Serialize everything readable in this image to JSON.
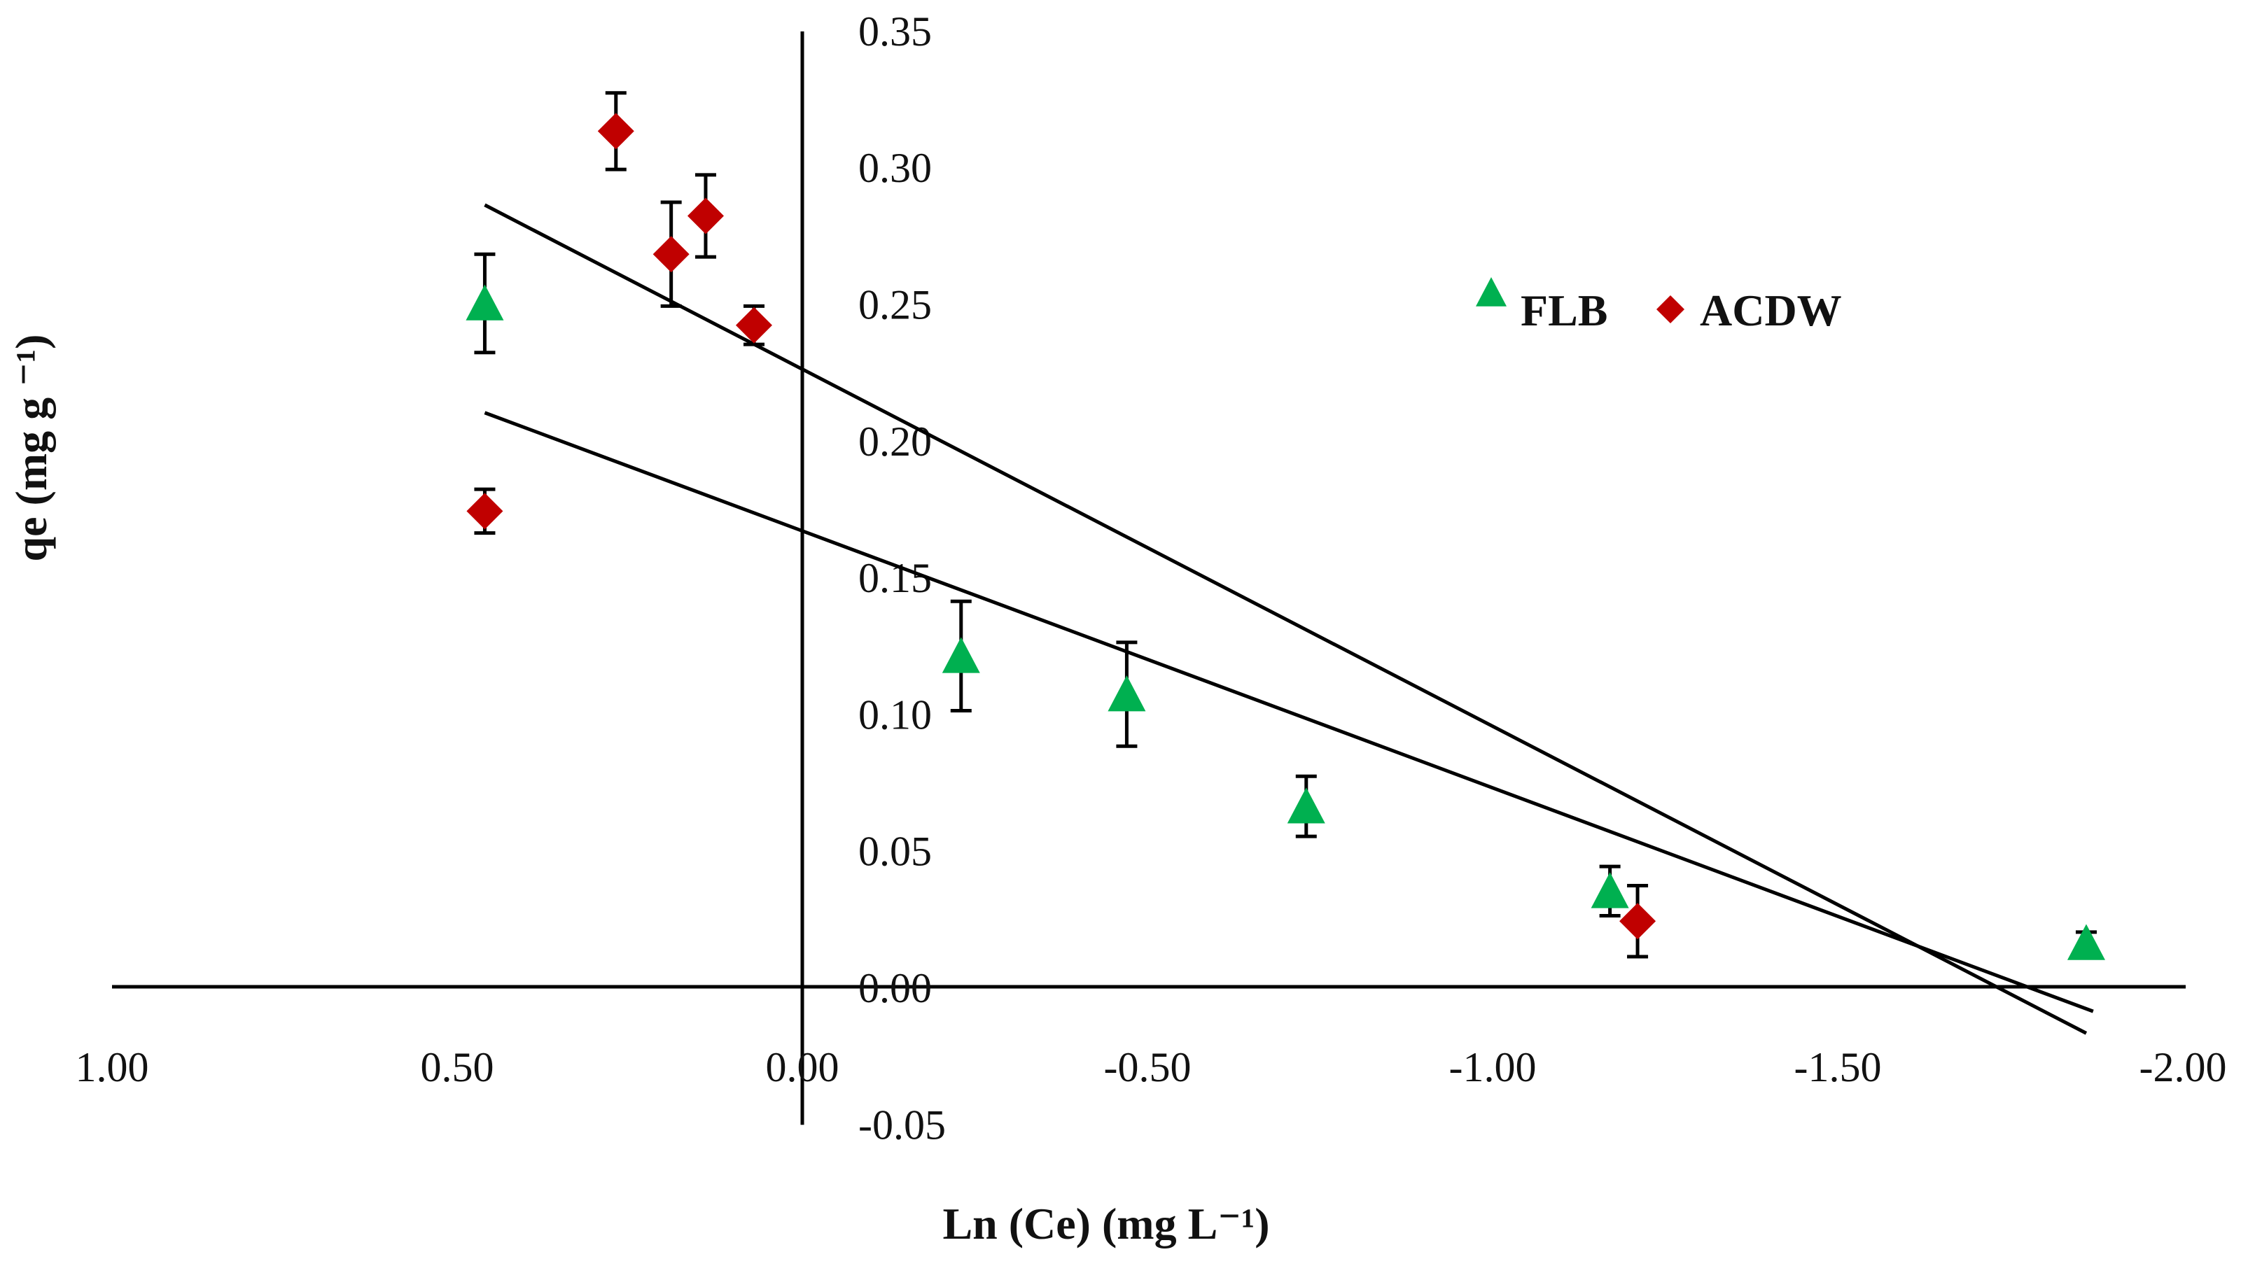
{
  "chart_data": {
    "type": "scatter",
    "title": "",
    "xlabel": "Ln (Ce) (mg L⁻¹)",
    "ylabel": "qe (mg g ⁻¹)",
    "x_reversed": true,
    "xlim": [
      -2.0,
      1.0
    ],
    "ylim": [
      -0.05,
      0.35
    ],
    "x_ticks": [
      1.0,
      0.5,
      0.0,
      -0.5,
      -1.0,
      -1.5,
      -2.0
    ],
    "x_tick_labels": [
      "1.00",
      "0.50",
      "0.00",
      "-0.50",
      "-1.00",
      "-1.50",
      "-2.00"
    ],
    "y_ticks": [
      -0.05,
      0.0,
      0.05,
      0.1,
      0.15,
      0.2,
      0.25,
      0.3,
      0.35
    ],
    "y_tick_labels": [
      "-0.05",
      "0.00",
      "0.05",
      "0.10",
      "0.15",
      "0.20",
      "0.25",
      "0.30",
      "0.35"
    ],
    "grid": false,
    "legend_position": "top-right",
    "series": [
      {
        "name": "FLB",
        "marker": "triangle",
        "color": "#00b050",
        "x": [
          0.46,
          -0.23,
          -0.47,
          -0.73,
          -1.17,
          -1.86
        ],
        "y": [
          0.25,
          0.121,
          0.107,
          0.066,
          0.035,
          0.016
        ],
        "err": [
          0.018,
          0.02,
          0.019,
          0.011,
          0.009,
          0.004
        ]
      },
      {
        "name": "ACDW",
        "marker": "diamond",
        "color": "#c00000",
        "x": [
          0.46,
          0.27,
          0.19,
          0.14,
          0.07,
          -1.21
        ],
        "y": [
          0.174,
          0.313,
          0.268,
          0.282,
          0.242,
          0.024
        ],
        "err": [
          0.008,
          0.014,
          0.019,
          0.015,
          0.007,
          0.013
        ]
      }
    ],
    "trendlines": [
      {
        "x": [
          0.46,
          -1.86
        ],
        "y": [
          0.286,
          -0.017
        ]
      },
      {
        "x": [
          0.46,
          -1.87
        ],
        "y": [
          0.21,
          -0.009
        ]
      }
    ],
    "colors": {
      "axis": "#000000",
      "trendline": "#000000",
      "errorbar": "#000000"
    }
  }
}
